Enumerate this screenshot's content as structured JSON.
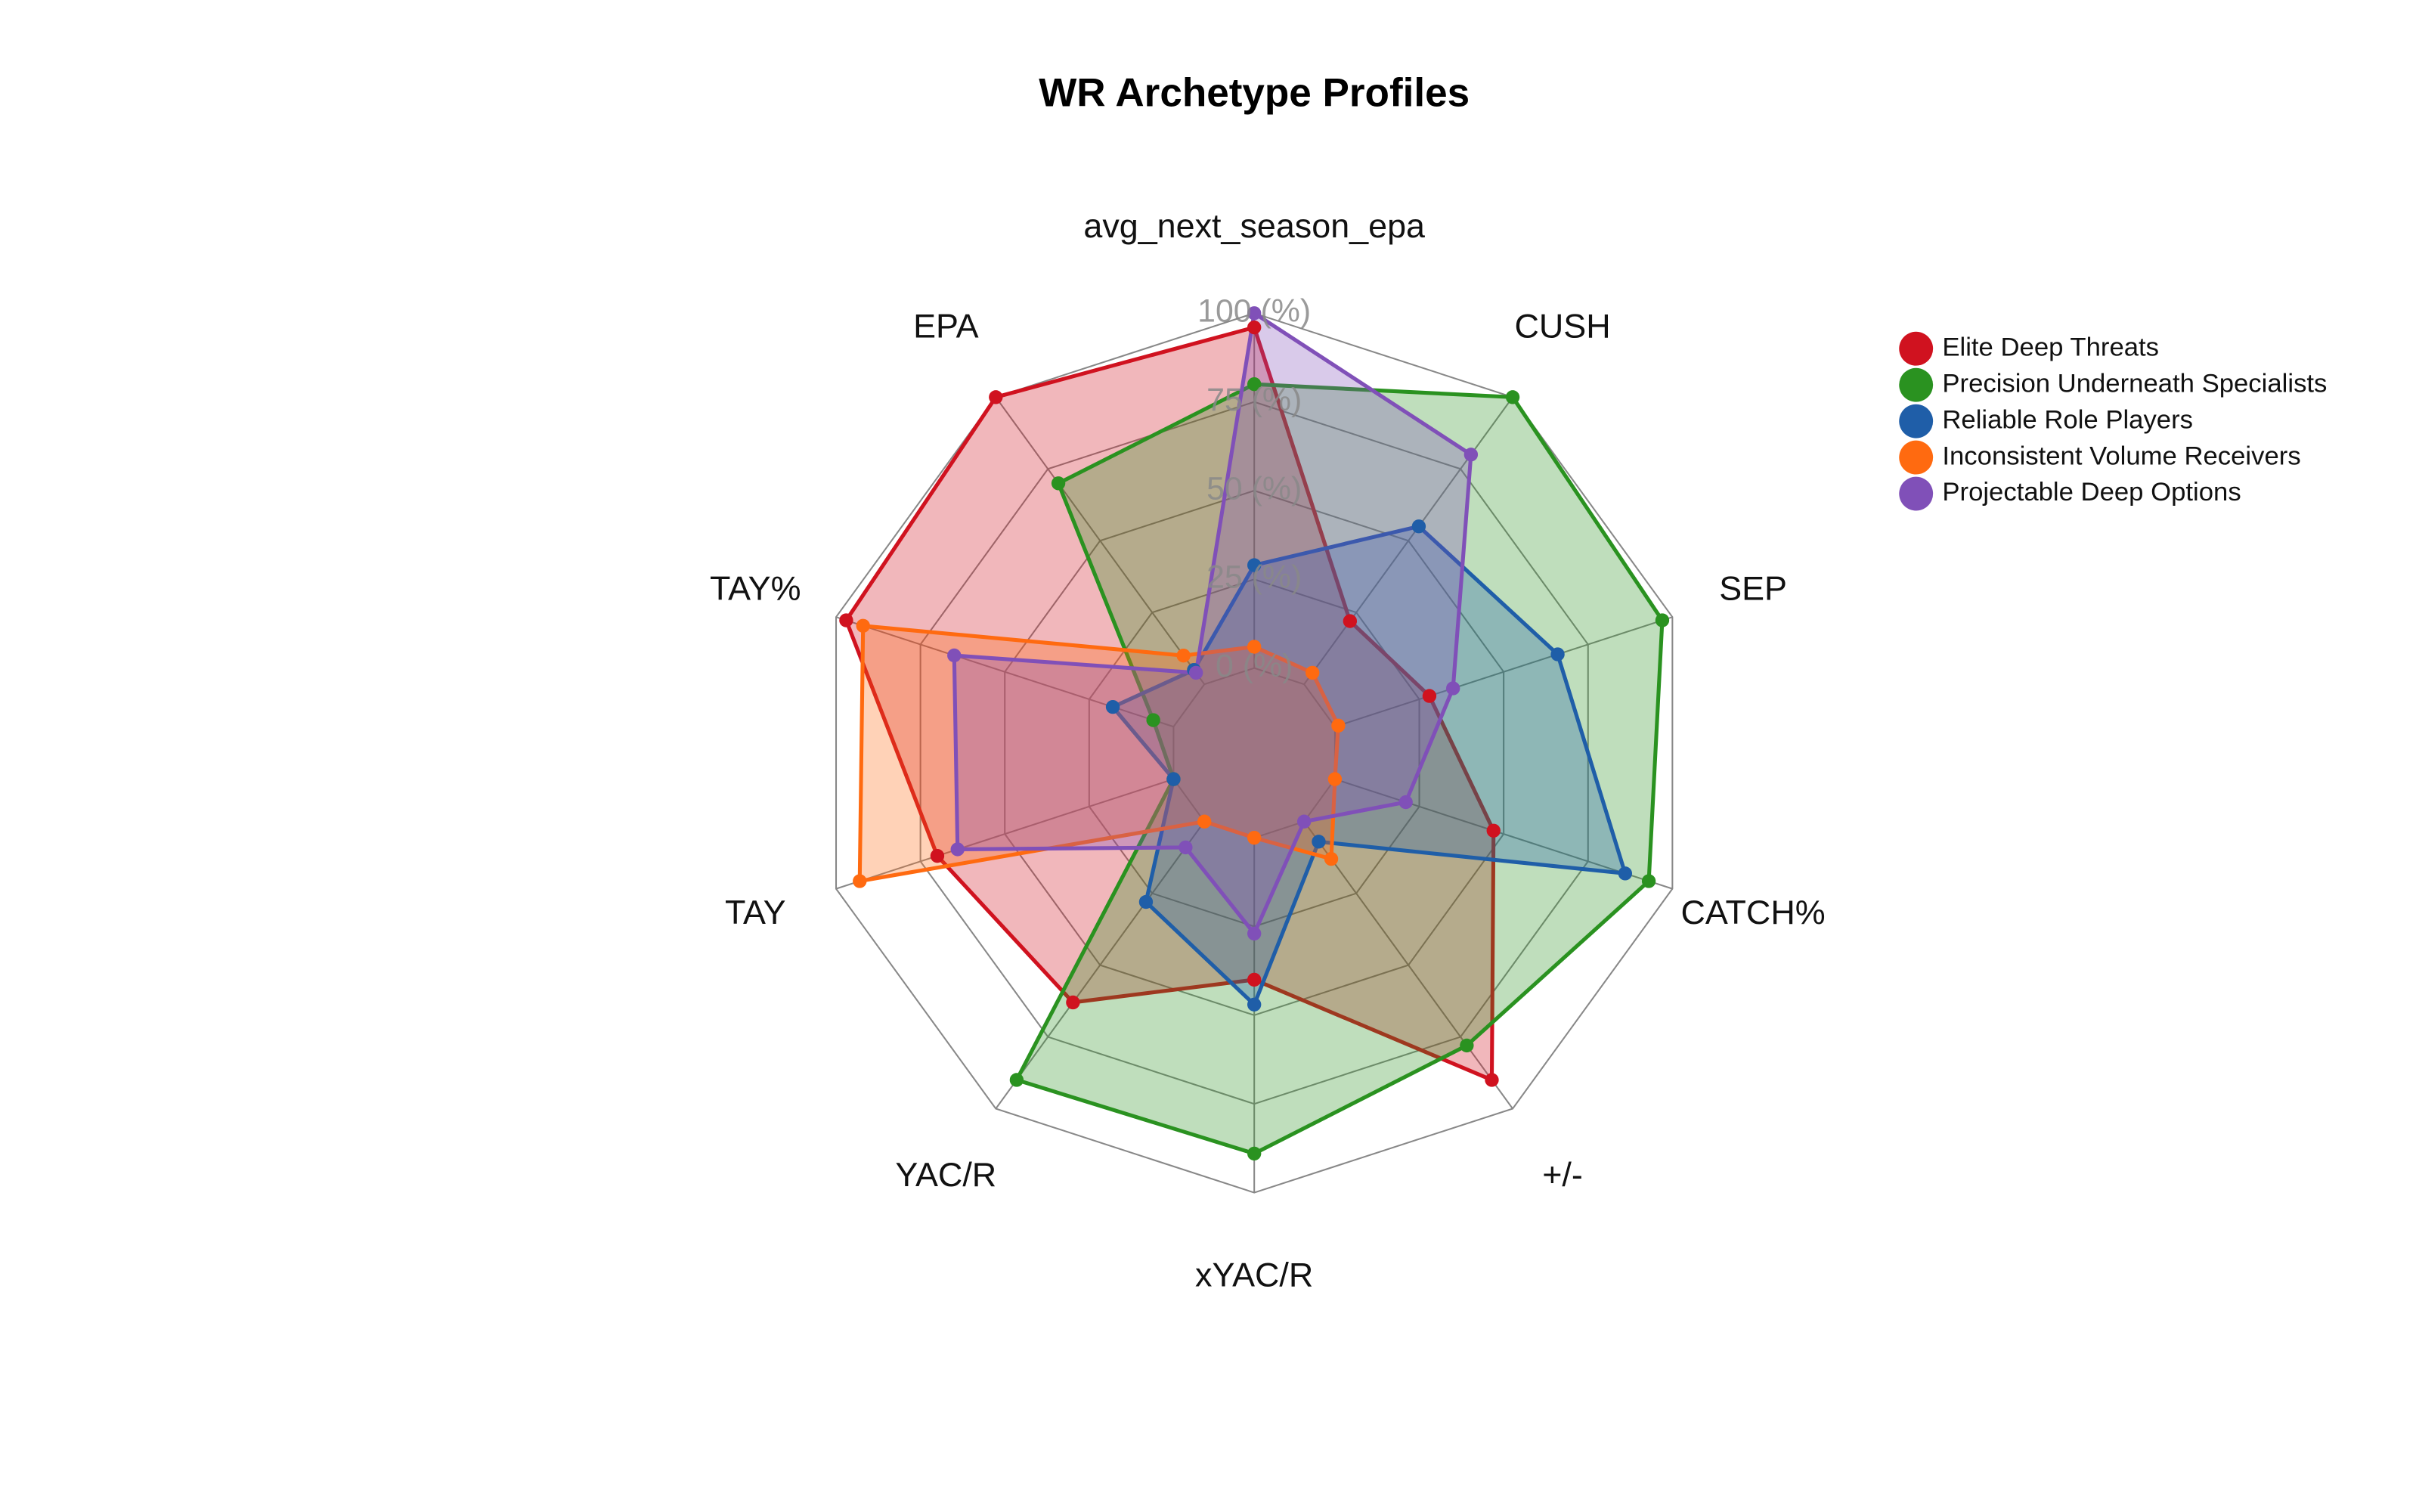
{
  "chart_data": {
    "type": "radar",
    "title": "WR Archetype Profiles",
    "categories": [
      "avg_next_season_epa",
      "CUSH",
      "SEP",
      "CATCH%",
      "+/-",
      "xYAC/R",
      "YAC/R",
      "TAY",
      "TAY%",
      "EPA"
    ],
    "rlim": [
      0,
      100
    ],
    "rticks": [
      {
        "value": 0,
        "label": "0 (%)"
      },
      {
        "value": 25,
        "label": "25 (%)"
      },
      {
        "value": 50,
        "label": "50 (%)"
      },
      {
        "value": 75,
        "label": "75 (%)"
      },
      {
        "value": 100,
        "label": "100 (%)"
      }
    ],
    "legend": "top-right",
    "series": [
      {
        "name": "Elite Deep Threats",
        "color": "#d0121f",
        "values": [
          96,
          22,
          28,
          47,
          90,
          40,
          63,
          70,
          97,
          100
        ]
      },
      {
        "name": "Precision Underneath Specialists",
        "color": "#2a9220",
        "values": [
          80,
          100,
          97,
          93,
          78,
          89,
          90,
          0,
          6,
          70
        ]
      },
      {
        "name": "Reliable Role Players",
        "color": "#1f5ea8",
        "values": [
          29,
          55,
          66,
          86,
          7,
          47,
          28,
          0,
          18,
          5
        ]
      },
      {
        "name": "Inconsistent Volume Receivers",
        "color": "#ff6a10",
        "values": [
          6,
          4,
          1,
          0,
          13,
          0,
          0,
          93,
          92,
          10
        ]
      },
      {
        "name": "Projectable Deep Options",
        "color": "#8050b8",
        "values": [
          100,
          80,
          35,
          21,
          0,
          27,
          9,
          64,
          65,
          4
        ]
      }
    ]
  }
}
